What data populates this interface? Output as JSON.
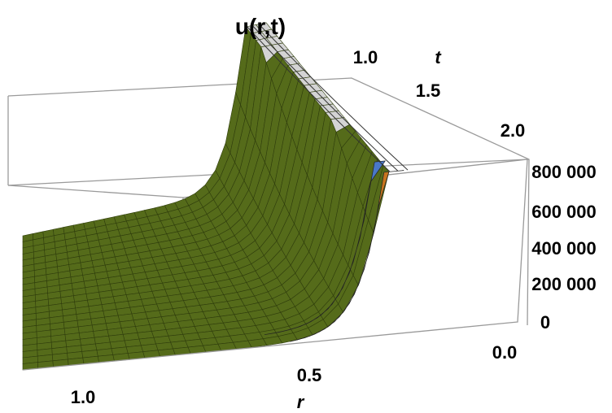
{
  "chart_data": {
    "type": "surface3d",
    "title": "u(r,t)",
    "xlabel": "r",
    "ylabel": "t",
    "zlabel": "",
    "r_ticks": [
      "1.0",
      "0.5",
      "0.0"
    ],
    "t_ticks": [
      "1.0",
      "1.5",
      "2.0"
    ],
    "z_ticks": [
      "0",
      "200 000",
      "400 000",
      "600 000",
      "800 000"
    ],
    "rlim": [
      0.0,
      1.0
    ],
    "tlim": [
      1.0,
      2.0
    ],
    "zlim": [
      0,
      900000
    ],
    "peak_value": 900000,
    "surface_colors": {
      "main": "#556b1a",
      "front_band_blue": "#4a78c8",
      "front_band_orange": "#c8741e",
      "top_plateau": "#d4d4d4"
    },
    "series": [
      {
        "t": 1.0,
        "r": [
          1.0,
          0.8,
          0.6,
          0.5,
          0.45,
          0.4,
          0.35,
          0.3
        ],
        "u": [
          0,
          0,
          2000,
          20000,
          80000,
          300000,
          800000,
          900000
        ]
      },
      {
        "t": 1.5,
        "r": [
          1.0,
          0.8,
          0.6,
          0.5,
          0.45,
          0.4,
          0.35,
          0.3
        ],
        "u": [
          0,
          0,
          1000,
          10000,
          50000,
          150000,
          500000,
          900000
        ]
      },
      {
        "t": 2.0,
        "r": [
          1.0,
          0.8,
          0.6,
          0.5,
          0.4,
          0.35,
          0.3,
          0.25
        ],
        "u": [
          0,
          0,
          500,
          5000,
          30000,
          100000,
          400000,
          900000
        ]
      }
    ]
  }
}
